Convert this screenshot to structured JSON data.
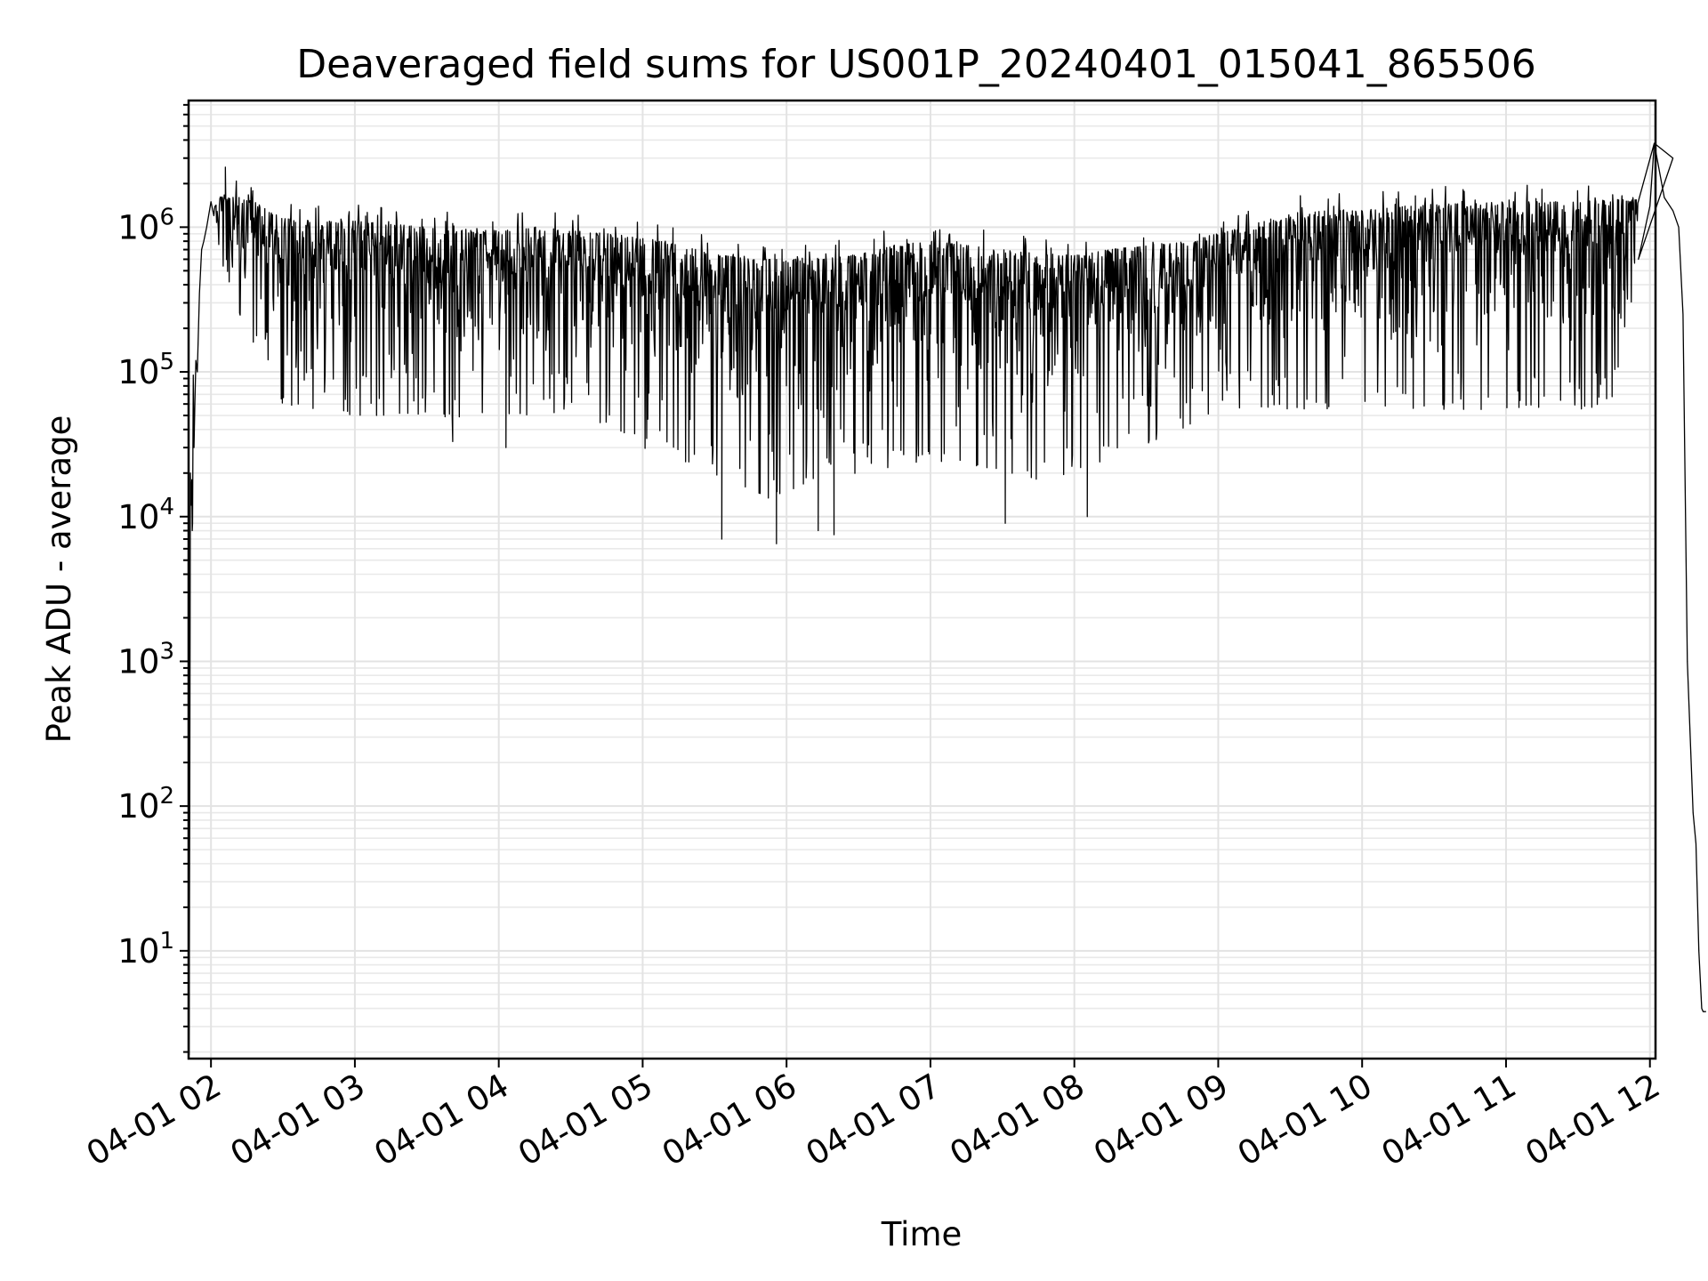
{
  "chart_data": {
    "type": "line",
    "title": "Deaveraged field sums for US001P_20240401_015041_865506",
    "xlabel": "Time",
    "ylabel": "Peak ADU - average",
    "yscale": "log",
    "ylim": [
      1.8,
      7500000
    ],
    "xlim": [
      "2024-04-01 01:50:40",
      "2024-04-01 12:02:20"
    ],
    "grid": true,
    "x_tick_labels": [
      "04-01 02",
      "04-01 03",
      "04-01 04",
      "04-01 05",
      "04-01 06",
      "04-01 07",
      "04-01 08",
      "04-01 09",
      "04-01 10",
      "04-01 11",
      "04-01 12"
    ],
    "x_ticks": [
      "2024-04-01 02:00",
      "2024-04-01 03:00",
      "2024-04-01 04:00",
      "2024-04-01 05:00",
      "2024-04-01 06:00",
      "2024-04-01 07:00",
      "2024-04-01 08:00",
      "2024-04-01 09:00",
      "2024-04-01 10:00",
      "2024-04-01 11:00",
      "2024-04-01 12:00"
    ],
    "y_ticks": [
      10,
      100,
      1000,
      10000,
      100000,
      1000000
    ],
    "y_tick_labels": [
      {
        "base": "10",
        "exp": "1"
      },
      {
        "base": "10",
        "exp": "2"
      },
      {
        "base": "10",
        "exp": "3"
      },
      {
        "base": "10",
        "exp": "4"
      },
      {
        "base": "10",
        "exp": "5"
      },
      {
        "base": "10",
        "exp": "6"
      }
    ],
    "series_color": "#000000",
    "series": [
      {
        "x_unit": "hour of 2024-04-01",
        "envelope": {
          "x": [
            1.86,
            2.0,
            2.1,
            2.2,
            2.3,
            2.4,
            2.5,
            2.75,
            3.0,
            3.25,
            3.5,
            3.75,
            4.0,
            4.25,
            4.5,
            4.75,
            5.0,
            5.25,
            5.5,
            5.75,
            6.0,
            6.25,
            6.5,
            6.75,
            7.0,
            7.25,
            7.5,
            7.75,
            8.0,
            8.25,
            8.5,
            8.75,
            9.0,
            9.25,
            9.5,
            9.75,
            10.0,
            10.25,
            10.5,
            10.75,
            11.0,
            11.25,
            11.5,
            11.75,
            11.9
          ],
          "upper": [
            120000,
            1500000,
            1700000,
            1600000,
            1500000,
            1300000,
            1150000,
            1100000,
            1100000,
            1050000,
            1000000,
            950000,
            950000,
            1000000,
            950000,
            900000,
            850000,
            750000,
            650000,
            600000,
            600000,
            600000,
            650000,
            750000,
            800000,
            750000,
            700000,
            650000,
            650000,
            700000,
            750000,
            800000,
            900000,
            1050000,
            1250000,
            1300000,
            1300000,
            1400000,
            1450000,
            1450000,
            1500000,
            1500000,
            1500000,
            1550000,
            1550000
          ],
          "lower": [
            12000,
            800000,
            500000,
            250000,
            150000,
            80000,
            60000,
            55000,
            50000,
            50000,
            50000,
            48000,
            50000,
            50000,
            45000,
            42000,
            30000,
            25000,
            20000,
            12000,
            15000,
            18000,
            20000,
            22000,
            25000,
            22000,
            20000,
            18000,
            20000,
            25000,
            30000,
            40000,
            55000,
            55000,
            55000,
            55000,
            55000,
            55000,
            55000,
            55000,
            55000,
            55000,
            55000,
            60000,
            200000
          ]
        },
        "deep_dips": [
          {
            "x": 1.87,
            "y": 8000
          },
          {
            "x": 3.68,
            "y": 33000
          },
          {
            "x": 4.05,
            "y": 30000
          },
          {
            "x": 5.55,
            "y": 7000
          },
          {
            "x": 5.93,
            "y": 6500
          },
          {
            "x": 6.22,
            "y": 8000
          },
          {
            "x": 6.33,
            "y": 7500
          },
          {
            "x": 7.52,
            "y": 9000
          },
          {
            "x": 8.09,
            "y": 10000
          }
        ],
        "spikes": [
          {
            "x": 2.1,
            "y": 2600000
          },
          {
            "x": 12.03,
            "y": 3800000
          },
          {
            "x": 12.16,
            "y": 3000000
          }
        ],
        "end_segment": {
          "x": [
            11.92,
            12.0,
            12.03,
            12.1,
            12.16,
            12.2,
            12.23,
            12.26,
            12.28,
            12.3,
            12.32,
            12.34,
            12.36,
            12.37,
            12.39
          ],
          "y": [
            600000,
            1400000,
            3800000,
            1600000,
            1300000,
            1000000,
            250000,
            1000,
            300,
            90,
            55,
            10,
            4,
            3.8,
            3.8
          ]
        },
        "start_segment": {
          "x": [
            1.848,
            1.853,
            1.857,
            1.862,
            1.867,
            1.872,
            1.877,
            1.882,
            1.888,
            1.895,
            1.905,
            1.92,
            1.935,
            1.95,
            1.97,
            2.0,
            2.02
          ],
          "y": [
            1.9,
            200,
            20000,
            12000,
            18000,
            9000,
            95000,
            30000,
            60000,
            120000,
            100000,
            350000,
            700000,
            800000,
            1000000,
            1500000,
            1200000
          ]
        }
      }
    ]
  }
}
